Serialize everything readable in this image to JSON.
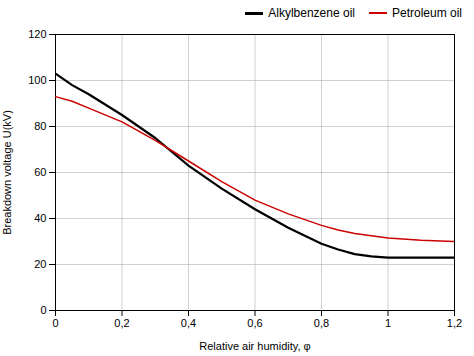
{
  "chart_data": {
    "type": "line",
    "xlabel": "Relative air humidity, φ",
    "ylabel": "Breakdown voltage U(kV)",
    "x": [
      0.0,
      0.05,
      0.1,
      0.2,
      0.3,
      0.4,
      0.5,
      0.6,
      0.7,
      0.8,
      0.85,
      0.9,
      0.95,
      1.0,
      1.1,
      1.2
    ],
    "series": [
      {
        "name": "Alkylbenzene oil",
        "color": "#000000",
        "values": [
          103,
          98,
          94,
          85,
          75,
          63,
          53,
          44,
          36,
          29,
          26.5,
          24.5,
          23.5,
          23,
          23,
          23
        ]
      },
      {
        "name": "Petroleum oil",
        "color": "#cc0000",
        "values": [
          93,
          91,
          88,
          82,
          74,
          65,
          56,
          48,
          42,
          37,
          35,
          33.5,
          32.5,
          31.5,
          30.5,
          30
        ]
      }
    ],
    "xlim": [
      0,
      1.2
    ],
    "ylim": [
      0,
      120
    ],
    "xticks": [
      0,
      {
        "value": 0.2,
        "label": "0,2"
      },
      {
        "value": 0.4,
        "label": "0,4"
      },
      {
        "value": 0.6,
        "label": "0,6"
      },
      {
        "value": 0.8,
        "label": "0,8"
      },
      1,
      {
        "value": 1.2,
        "label": "1,2"
      }
    ],
    "yticks": [
      0,
      20,
      40,
      60,
      80,
      100,
      120
    ],
    "grid": true,
    "legend": "upper right"
  }
}
